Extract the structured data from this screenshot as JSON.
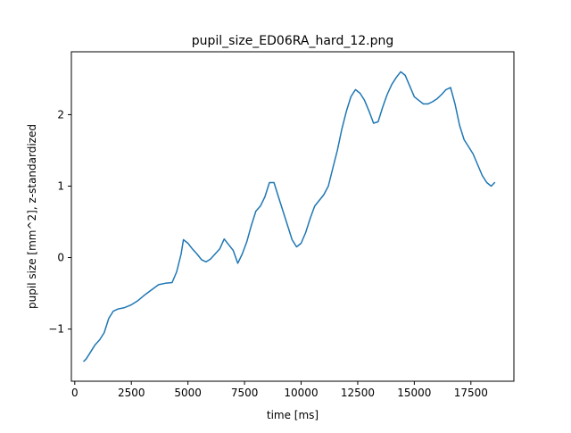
{
  "chart_data": {
    "type": "line",
    "title": "pupil_size_ED06RA_hard_12.png",
    "xlabel": "time [ms]",
    "ylabel": "pupil size [mm^2], z-standardized",
    "xlim": [
      -150,
      19400
    ],
    "ylim": [
      -1.73,
      2.88
    ],
    "xticks": [
      0,
      2500,
      5000,
      7500,
      10000,
      12500,
      15000,
      17500
    ],
    "xtick_labels": [
      "0",
      "2500",
      "5000",
      "7500",
      "10000",
      "12500",
      "15000",
      "17500"
    ],
    "yticks": [
      -1,
      0,
      1,
      2
    ],
    "ytick_labels": [
      "−1",
      "0",
      "1",
      "2"
    ],
    "grid": false,
    "line_color": "#1f77b4",
    "series": [
      {
        "x": [
          400,
          500,
          700,
          900,
          1100,
          1300,
          1500,
          1700,
          1900,
          2200,
          2500,
          2800,
          3100,
          3400,
          3700,
          4000,
          4300,
          4500,
          4700,
          4800,
          5000,
          5200,
          5400,
          5600,
          5800,
          6000,
          6200,
          6400,
          6600,
          6800,
          7000,
          7200,
          7400,
          7600,
          7800,
          8000,
          8200,
          8400,
          8600,
          8800,
          9000,
          9200,
          9400,
          9600,
          9800,
          10000,
          10200,
          10400,
          10600,
          10800,
          11000,
          11200,
          11400,
          11600,
          11800,
          12000,
          12200,
          12400,
          12600,
          12800,
          13000,
          13200,
          13400,
          13600,
          13800,
          14000,
          14200,
          14400,
          14600,
          14800,
          15000,
          15200,
          15400,
          15600,
          15800,
          16000,
          16200,
          16400,
          16600,
          16800,
          17000,
          17200,
          17400,
          17600,
          17800,
          18000,
          18200,
          18400,
          18550
        ],
        "y": [
          -1.45,
          -1.42,
          -1.32,
          -1.22,
          -1.15,
          -1.05,
          -0.85,
          -0.75,
          -0.72,
          -0.7,
          -0.66,
          -0.6,
          -0.52,
          -0.45,
          -0.38,
          -0.36,
          -0.35,
          -0.2,
          0.05,
          0.25,
          0.2,
          0.12,
          0.05,
          -0.03,
          -0.06,
          -0.02,
          0.05,
          0.12,
          0.26,
          0.18,
          0.1,
          -0.08,
          0.05,
          0.22,
          0.45,
          0.65,
          0.72,
          0.85,
          1.05,
          1.05,
          0.85,
          0.65,
          0.45,
          0.25,
          0.15,
          0.2,
          0.35,
          0.55,
          0.72,
          0.8,
          0.88,
          1.0,
          1.25,
          1.5,
          1.8,
          2.05,
          2.25,
          2.35,
          2.3,
          2.2,
          2.05,
          1.88,
          1.9,
          2.1,
          2.28,
          2.42,
          2.52,
          2.6,
          2.55,
          2.4,
          2.25,
          2.2,
          2.15,
          2.15,
          2.18,
          2.22,
          2.28,
          2.35,
          2.38,
          2.15,
          1.85,
          1.65,
          1.55,
          1.45,
          1.3,
          1.15,
          1.05,
          1.0,
          1.05
        ]
      }
    ]
  }
}
